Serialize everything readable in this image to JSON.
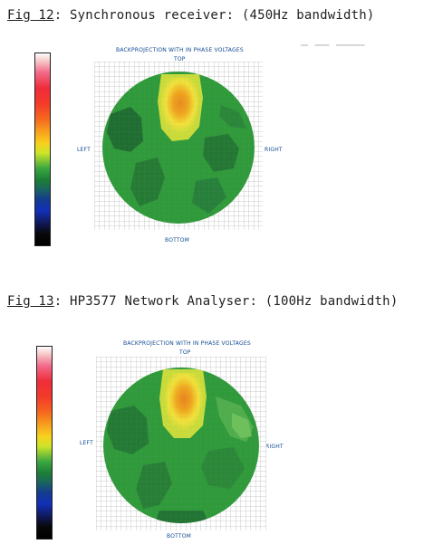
{
  "figures": [
    {
      "label": "Fig 12",
      "caption": ": Synchronous receiver: (450Hz bandwidth)",
      "plot_title": "BACKPROJECTION WITH IN PHASE VOLTAGES",
      "top_label": "TOP",
      "bottom_label": "BOTTOM",
      "left_label": "LEFT",
      "right_label": "RIGHT"
    },
    {
      "label": "Fig 13",
      "caption": ": HP3577 Network Analyser: (100Hz bandwidth)",
      "plot_title": "BACKPROJECTION WITH IN PHASE VOLTAGES",
      "top_label": "TOP",
      "bottom_label": "BOTTOM",
      "left_label": "LEFT",
      "right_label": "RIGHT"
    }
  ],
  "colors": {
    "background_green": "#2f9a3a",
    "dark_green": "#1f6e31",
    "hot_yellow": "#f2e23a",
    "hot_orange": "#f0a41d",
    "grid": "#9a9a9a",
    "label_blue": "#114a92"
  }
}
